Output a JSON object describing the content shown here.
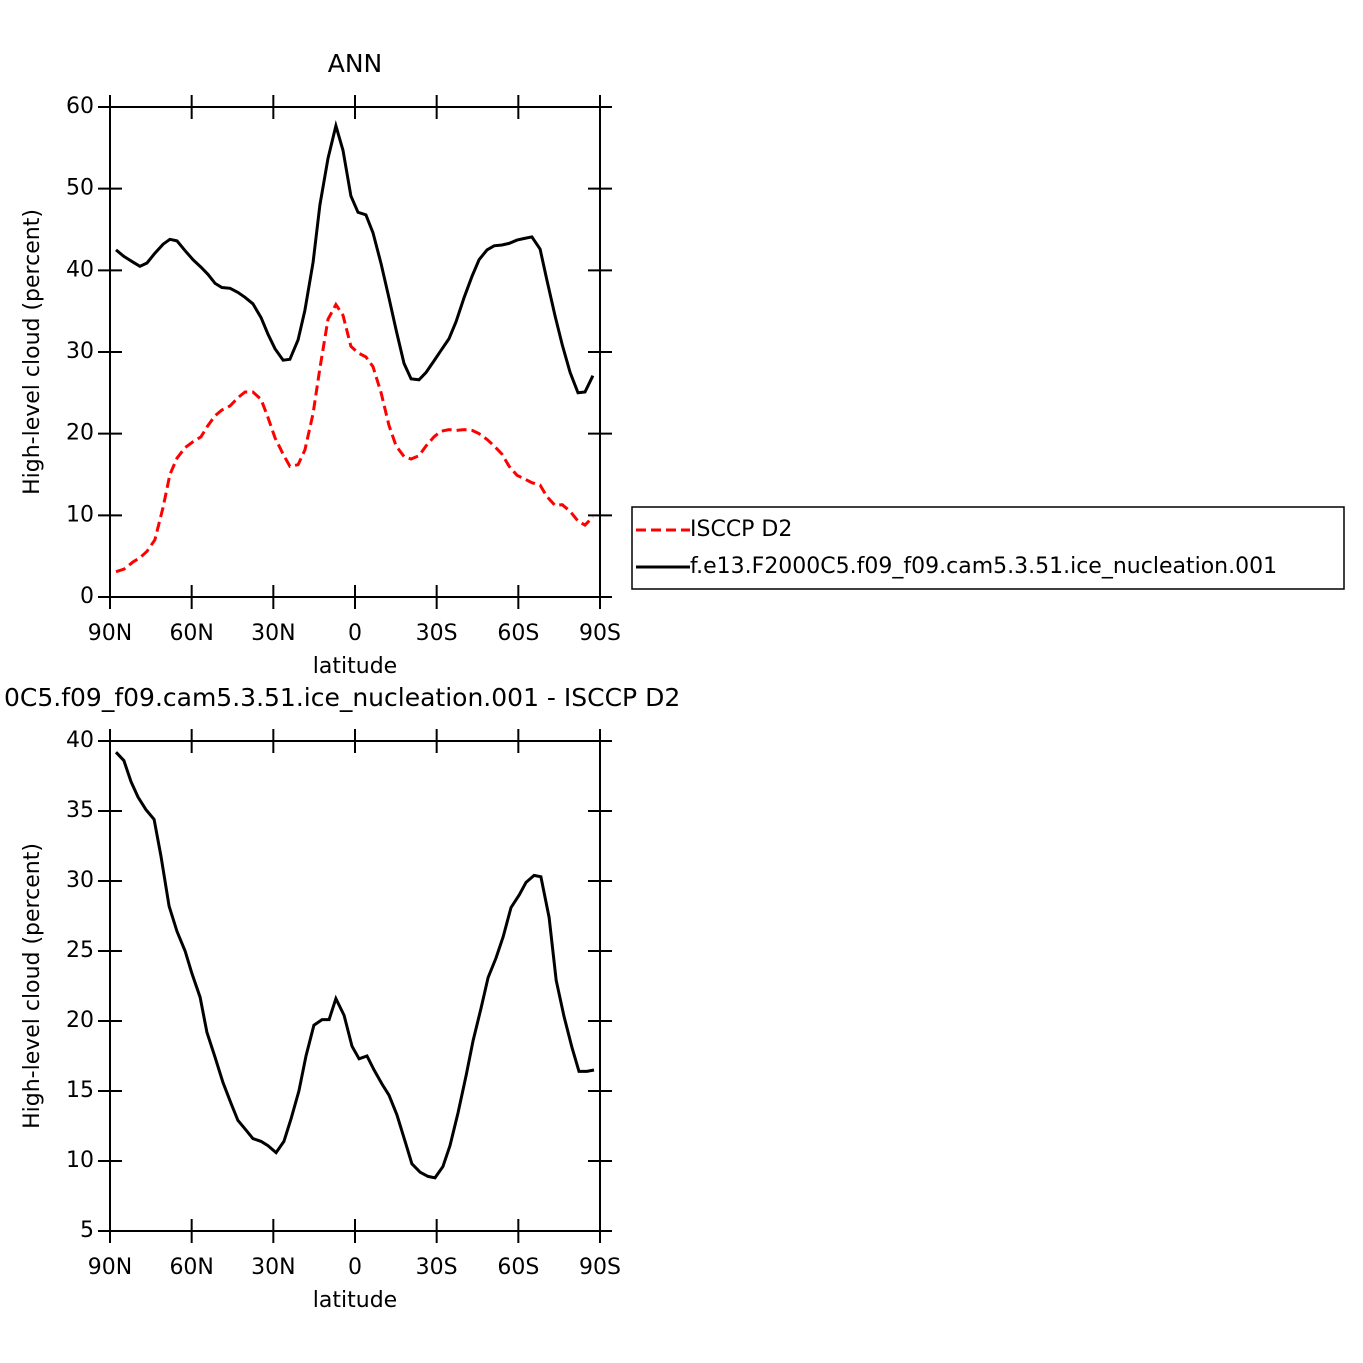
{
  "chart_data": [
    {
      "type": "line",
      "title": "ANN",
      "xlabel": "latitude",
      "ylabel": "High-level cloud (percent)",
      "x": [
        87.8,
        84.9,
        81.5,
        79,
        76.4,
        73.5,
        70.5,
        68,
        65.4,
        62.4,
        59.5,
        56.6,
        54,
        51.4,
        48.9,
        45.9,
        43,
        40.4,
        37.5,
        34.5,
        32,
        29.4,
        26.4,
        23.9,
        20.9,
        18.4,
        15.4,
        12.9,
        9.9,
        7.0,
        4.4,
        1.5,
        -1.1,
        -4,
        -6.6,
        -9.6,
        -12.5,
        -15.1,
        -18,
        -20.6,
        -23.5,
        -26.1,
        -29,
        -31.6,
        -34.5,
        -37.1,
        -40.1,
        -43,
        -45.6,
        -48.5,
        -51.1,
        -54,
        -56.6,
        -59.5,
        -62.1,
        -65,
        -68,
        -70.5,
        -73.5,
        -76.1,
        -79,
        -81.9,
        -84.5,
        -87.4
      ],
      "series": [
        {
          "name": "ISCCP D2",
          "color": "#ff0000",
          "style": "dashed",
          "values": [
            3.1,
            3.4,
            4.3,
            4.8,
            5.6,
            7.0,
            11,
            15,
            17,
            18.3,
            19.0,
            19.6,
            21.0,
            22.2,
            22.9,
            23.4,
            24.4,
            25.1,
            25.1,
            24.2,
            22.0,
            19.5,
            17.5,
            16.0,
            16.2,
            18.0,
            22.5,
            28.0,
            34.0,
            35.8,
            34.5,
            30.7,
            29.9,
            29.4,
            28.2,
            25,
            21.0,
            18.5,
            17.2,
            16.9,
            17.3,
            18.5,
            19.6,
            20.3,
            20.5,
            20.4,
            20.5,
            20.4,
            20.0,
            19.3,
            18.5,
            17.5,
            16.0,
            14.9,
            14.5,
            14.0,
            13.7,
            12.3,
            11.2,
            11.3,
            10.5,
            9.3,
            8.8,
            9.8
          ]
        },
        {
          "name": "f.e13.F2000C5.f09_f09.cam5.3.51.ice_nucleation.001",
          "color": "#000000",
          "style": "solid",
          "values": [
            42.5,
            41.7,
            41.0,
            40.5,
            40.9,
            42.1,
            43.2,
            43.8,
            43.6,
            42.4,
            41.3,
            40.4,
            39.5,
            38.4,
            37.9,
            37.8,
            37.3,
            36.7,
            35.9,
            34.2,
            32.2,
            30.4,
            29.0,
            29.1,
            31.5,
            35.1,
            41.0,
            48.0,
            53.7,
            57.7,
            54.7,
            49.1,
            47.1,
            46.8,
            44.6,
            40.8,
            36.6,
            32.7,
            28.6,
            26.7,
            26.6,
            27.5,
            28.9,
            30.2,
            31.6,
            33.7,
            36.7,
            39.3,
            41.3,
            42.5,
            43.0,
            43.1,
            43.3,
            43.7,
            43.9,
            44.1,
            42.6,
            38.8,
            34.4,
            30.9,
            27.5,
            25.0,
            25.1,
            27.1
          ]
        }
      ],
      "xlim": [
        90,
        -90
      ],
      "xticks": [
        {
          "value": 90,
          "label": "90N"
        },
        {
          "value": 60,
          "label": "60N"
        },
        {
          "value": 30,
          "label": "30N"
        },
        0,
        {
          "value": -30,
          "label": "30S"
        },
        {
          "value": -60,
          "label": "60S"
        },
        {
          "value": -90,
          "label": "90S"
        }
      ],
      "ylim": [
        0,
        60
      ],
      "yticks": [
        0,
        10,
        20,
        30,
        40,
        50,
        60
      ],
      "legend": "right"
    },
    {
      "type": "line",
      "title": "0C5.f09_f09.cam5.3.51.ice_nucleation.001 - ISCCP D2",
      "xlabel": "latitude",
      "ylabel": "High-level cloud (percent)",
      "x": [
        87.8,
        84.9,
        82.3,
        79.7,
        76.8,
        73.8,
        71.3,
        68.3,
        65.4,
        62.4,
        59.9,
        56.9,
        54.4,
        51.4,
        48.5,
        45.5,
        43.0,
        40.0,
        37.5,
        34.5,
        32.0,
        29.0,
        26.1,
        23.5,
        20.6,
        18.0,
        15.1,
        12.1,
        9.5,
        7.0,
        4.0,
        1.1,
        -1.5,
        -4.4,
        -7.0,
        -9.9,
        -12.5,
        -15.4,
        -18.4,
        -20.9,
        -23.9,
        -26.8,
        -29.4,
        -32.3,
        -34.9,
        -37.8,
        -40.8,
        -43.4,
        -46.3,
        -48.9,
        -51.8,
        -54.4,
        -57.3,
        -60.3,
        -62.8,
        -65.8,
        -68.3,
        -71.3,
        -73.9,
        -76.8,
        -79.7,
        -82.3,
        -85.2,
        -87.8
      ],
      "series": [
        {
          "color": "#000000",
          "style": "solid",
          "values": [
            39.2,
            38.6,
            37.1,
            36.0,
            35.1,
            34.4,
            31.8,
            28.2,
            26.4,
            25.0,
            23.4,
            21.7,
            19.2,
            17.4,
            15.6,
            14.1,
            12.9,
            12.2,
            11.6,
            11.4,
            11.1,
            10.6,
            11.4,
            13.0,
            15.0,
            17.5,
            19.7,
            20.1,
            20.1,
            21.6,
            20.4,
            18.2,
            17.3,
            17.5,
            16.5,
            15.5,
            14.7,
            13.3,
            11.4,
            9.8,
            9.2,
            8.9,
            8.8,
            9.6,
            11.1,
            13.4,
            16.1,
            18.6,
            20.9,
            23.1,
            24.5,
            26.0,
            28.1,
            29.0,
            29.9,
            30.4,
            30.3,
            27.4,
            22.9,
            20.3,
            18.1,
            16.4,
            16.4,
            16.5
          ]
        }
      ],
      "xlim": [
        90,
        -90
      ],
      "xticks": [
        {
          "value": 90,
          "label": "90N"
        },
        {
          "value": 60,
          "label": "60N"
        },
        {
          "value": 30,
          "label": "30N"
        },
        0,
        {
          "value": -30,
          "label": "30S"
        },
        {
          "value": -60,
          "label": "60S"
        },
        {
          "value": -90,
          "label": "90S"
        }
      ],
      "ylim": [
        5,
        40
      ],
      "yticks": [
        5,
        10,
        15,
        20,
        25,
        30,
        35,
        40
      ]
    }
  ]
}
